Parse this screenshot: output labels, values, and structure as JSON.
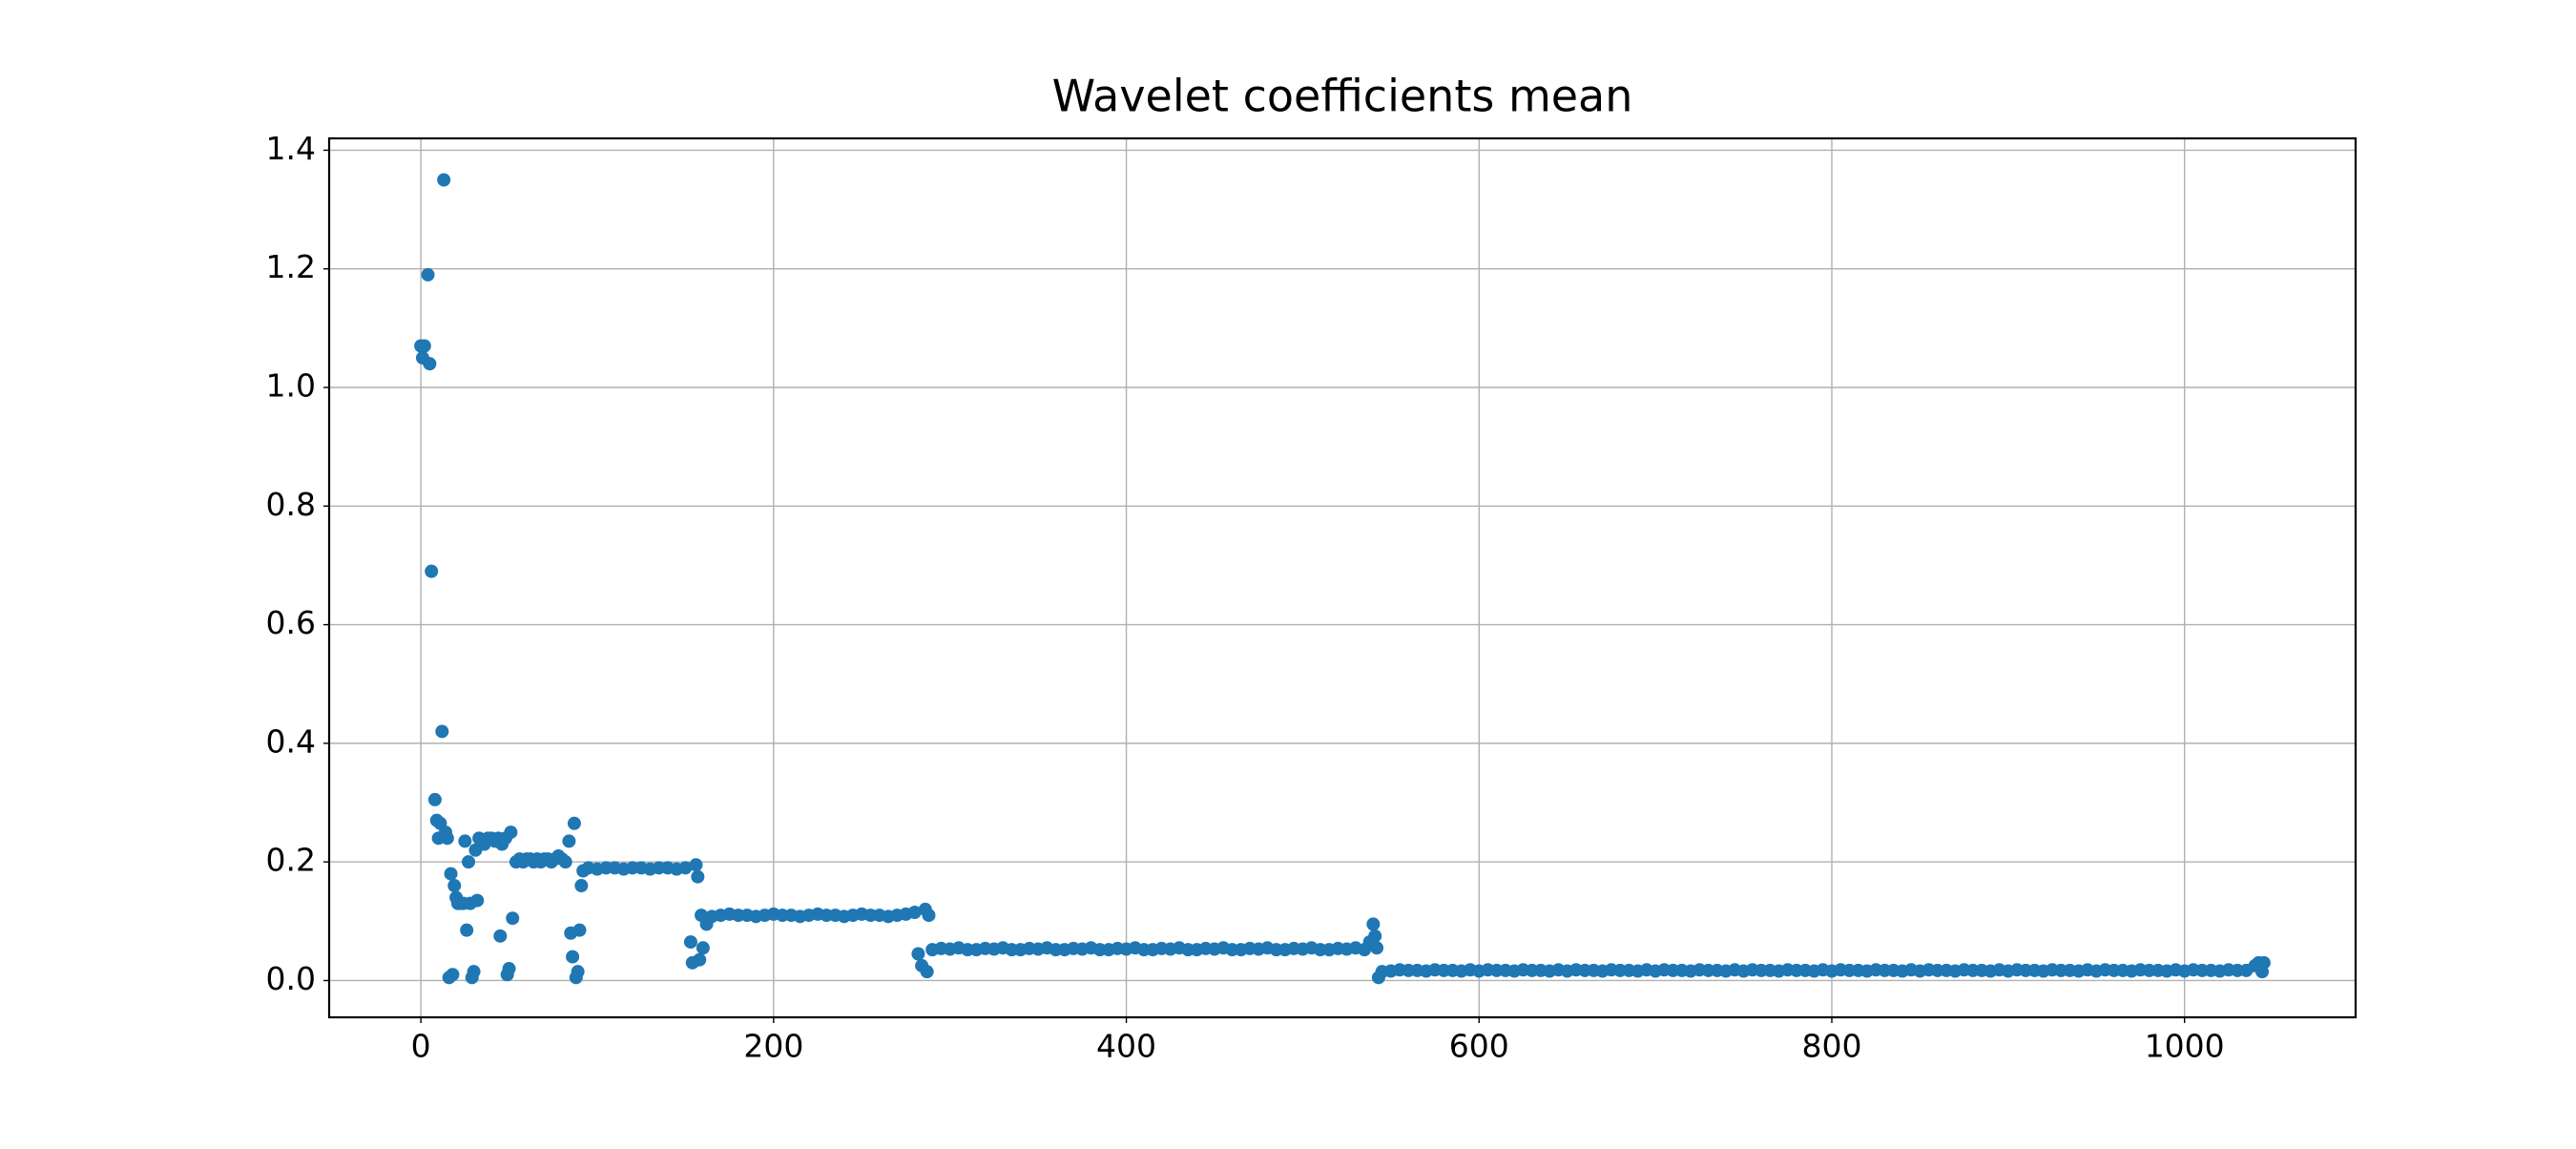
{
  "chart_data": {
    "type": "scatter",
    "title": "Wavelet coefficients mean",
    "xlim": [
      -52,
      1097
    ],
    "xticks": [
      0,
      200,
      400,
      600,
      800,
      1000
    ],
    "ylim": [
      -0.062,
      1.42
    ],
    "yticks": [
      {
        "value": 0,
        "label": "0.0"
      },
      0.2,
      0.4,
      0.6,
      0.8,
      {
        "value": 1,
        "label": "1.0"
      },
      1.2,
      1.4
    ],
    "grid": true,
    "series": [
      {
        "color": "#1f77b4",
        "x": [
          0,
          1,
          2,
          4,
          5,
          6,
          8,
          9,
          10,
          11,
          12,
          13,
          14,
          15,
          16,
          17,
          18,
          19,
          20,
          21,
          22,
          24,
          25,
          26,
          27,
          28,
          29,
          30,
          31,
          32,
          33,
          36,
          38,
          40,
          42,
          44,
          45,
          46,
          48,
          49,
          50,
          51,
          52,
          54,
          56,
          58,
          60,
          62,
          64,
          66,
          68,
          70,
          72,
          74,
          76,
          78,
          80,
          82,
          84,
          85,
          86,
          87,
          88,
          89,
          90,
          91,
          92,
          95,
          100,
          105,
          110,
          115,
          120,
          125,
          130,
          135,
          140,
          145,
          150,
          153,
          154,
          156,
          157,
          158,
          159,
          160,
          162,
          165,
          170,
          175,
          180,
          185,
          190,
          195,
          200,
          205,
          210,
          215,
          220,
          225,
          230,
          235,
          240,
          245,
          250,
          255,
          260,
          265,
          270,
          275,
          280,
          282,
          284,
          286,
          287,
          288,
          290,
          295,
          300,
          305,
          310,
          315,
          320,
          325,
          330,
          335,
          340,
          345,
          350,
          355,
          360,
          365,
          370,
          375,
          380,
          385,
          390,
          395,
          400,
          405,
          410,
          415,
          420,
          425,
          430,
          435,
          440,
          445,
          450,
          455,
          460,
          465,
          470,
          475,
          480,
          485,
          490,
          495,
          500,
          505,
          510,
          515,
          520,
          525,
          530,
          535,
          538,
          540,
          541,
          542,
          543,
          545,
          550,
          555,
          560,
          565,
          570,
          575,
          580,
          585,
          590,
          595,
          600,
          605,
          610,
          615,
          620,
          625,
          630,
          635,
          640,
          645,
          650,
          655,
          660,
          665,
          670,
          675,
          680,
          685,
          690,
          695,
          700,
          705,
          710,
          715,
          720,
          725,
          730,
          735,
          740,
          745,
          750,
          755,
          760,
          765,
          770,
          775,
          780,
          785,
          790,
          795,
          800,
          805,
          810,
          815,
          820,
          825,
          830,
          835,
          840,
          845,
          850,
          855,
          860,
          865,
          870,
          875,
          880,
          885,
          890,
          895,
          900,
          905,
          910,
          915,
          920,
          925,
          930,
          935,
          940,
          945,
          950,
          955,
          960,
          965,
          970,
          975,
          980,
          985,
          990,
          995,
          1000,
          1005,
          1010,
          1015,
          1020,
          1025,
          1030,
          1035,
          1040,
          1042,
          1044,
          1045
        ],
        "values": [
          1.07,
          1.05,
          1.07,
          1.19,
          1.04,
          0.69,
          0.305,
          0.27,
          0.24,
          0.265,
          0.42,
          1.35,
          0.25,
          0.24,
          0.005,
          0.18,
          0.01,
          0.16,
          0.14,
          0.13,
          0.13,
          0.13,
          0.235,
          0.085,
          0.2,
          0.13,
          0.005,
          0.015,
          0.22,
          0.135,
          0.24,
          0.23,
          0.24,
          0.24,
          0.235,
          0.24,
          0.075,
          0.23,
          0.24,
          0.01,
          0.02,
          0.25,
          0.105,
          0.2,
          0.205,
          0.2,
          0.205,
          0.205,
          0.2,
          0.205,
          0.2,
          0.205,
          0.205,
          0.2,
          0.205,
          0.21,
          0.205,
          0.2,
          0.235,
          0.08,
          0.04,
          0.265,
          0.005,
          0.015,
          0.085,
          0.16,
          0.185,
          0.19,
          0.188,
          0.19,
          0.19,
          0.188,
          0.19,
          0.19,
          0.188,
          0.19,
          0.19,
          0.188,
          0.19,
          0.065,
          0.03,
          0.195,
          0.175,
          0.035,
          0.11,
          0.055,
          0.095,
          0.108,
          0.11,
          0.112,
          0.11,
          0.11,
          0.108,
          0.11,
          0.112,
          0.11,
          0.11,
          0.108,
          0.11,
          0.112,
          0.11,
          0.11,
          0.108,
          0.11,
          0.112,
          0.11,
          0.11,
          0.108,
          0.11,
          0.112,
          0.115,
          0.045,
          0.025,
          0.12,
          0.015,
          0.11,
          0.052,
          0.054,
          0.053,
          0.055,
          0.052,
          0.052,
          0.054,
          0.053,
          0.055,
          0.052,
          0.052,
          0.054,
          0.053,
          0.055,
          0.052,
          0.052,
          0.054,
          0.053,
          0.055,
          0.052,
          0.052,
          0.054,
          0.053,
          0.055,
          0.052,
          0.052,
          0.054,
          0.053,
          0.055,
          0.052,
          0.052,
          0.054,
          0.053,
          0.055,
          0.052,
          0.052,
          0.054,
          0.053,
          0.055,
          0.052,
          0.052,
          0.054,
          0.053,
          0.055,
          0.052,
          0.052,
          0.054,
          0.053,
          0.055,
          0.052,
          0.065,
          0.095,
          0.075,
          0.055,
          0.005,
          0.015,
          0.016,
          0.018,
          0.017,
          0.017,
          0.016,
          0.018,
          0.017,
          0.017,
          0.016,
          0.018,
          0.016,
          0.018,
          0.017,
          0.017,
          0.016,
          0.018,
          0.017,
          0.017,
          0.016,
          0.018,
          0.016,
          0.018,
          0.017,
          0.017,
          0.016,
          0.018,
          0.017,
          0.017,
          0.016,
          0.018,
          0.016,
          0.018,
          0.017,
          0.017,
          0.016,
          0.018,
          0.017,
          0.017,
          0.016,
          0.018,
          0.016,
          0.018,
          0.017,
          0.017,
          0.016,
          0.018,
          0.017,
          0.017,
          0.016,
          0.018,
          0.016,
          0.018,
          0.017,
          0.017,
          0.016,
          0.018,
          0.017,
          0.017,
          0.016,
          0.018,
          0.016,
          0.018,
          0.017,
          0.017,
          0.016,
          0.018,
          0.017,
          0.017,
          0.016,
          0.018,
          0.016,
          0.018,
          0.017,
          0.017,
          0.016,
          0.018,
          0.017,
          0.017,
          0.016,
          0.018,
          0.016,
          0.018,
          0.017,
          0.017,
          0.016,
          0.018,
          0.017,
          0.017,
          0.016,
          0.018,
          0.016,
          0.018,
          0.017,
          0.017,
          0.016,
          0.018,
          0.017,
          0.017,
          0.025,
          0.03,
          0.015,
          0.03
        ]
      }
    ]
  }
}
